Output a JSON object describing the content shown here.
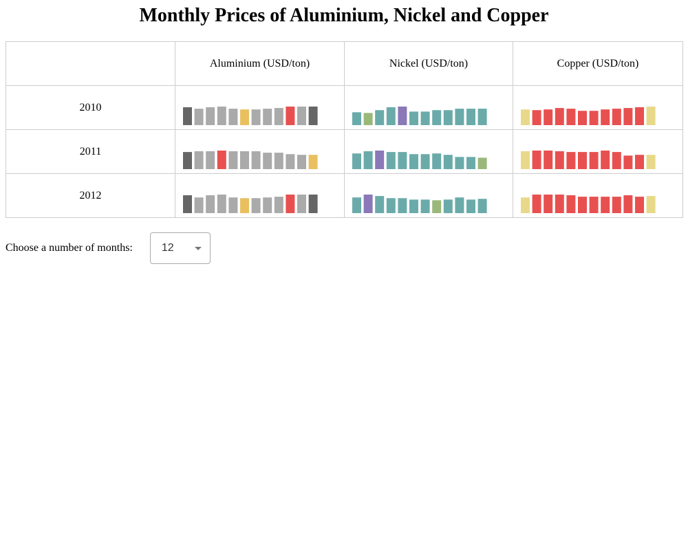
{
  "title": "Monthly Prices of Aluminium, Nickel and Copper",
  "controls": {
    "label": "Choose a number of months:",
    "selected": "12"
  },
  "chart_data": {
    "type": "table",
    "columns": [
      "Aluminium (USD/ton)",
      "Nickel (USD/ton)",
      "Copper (USD/ton)"
    ],
    "rows": [
      "2010",
      "2011",
      "2012"
    ],
    "series": [
      {
        "year": "2010",
        "values": [
          [
            25,
            23,
            25,
            26,
            23,
            22,
            22,
            23,
            24,
            26,
            26,
            26
          ],
          [
            18,
            17,
            21,
            25,
            26,
            19,
            19,
            21,
            21,
            23,
            23,
            23
          ],
          [
            22,
            21,
            22,
            24,
            23,
            20,
            20,
            22,
            23,
            24,
            25,
            26
          ]
        ],
        "colors": [
          [
            "#666666",
            "#aaaaaa",
            "#aaaaaa",
            "#aaaaaa",
            "#aaaaaa",
            "#e8c060",
            "#aaaaaa",
            "#aaaaaa",
            "#aaaaaa",
            "#e85050",
            "#aaaaaa",
            "#666666"
          ],
          [
            "#6aabaa",
            "#9ab87a",
            "#6aabaa",
            "#6aabaa",
            "#8a78b8",
            "#6aabaa",
            "#6aabaa",
            "#6aabaa",
            "#6aabaa",
            "#6aabaa",
            "#6aabaa",
            "#6aabaa"
          ],
          [
            "#e8d98a",
            "#e85050",
            "#e85050",
            "#e85050",
            "#e85050",
            "#e85050",
            "#e85050",
            "#e85050",
            "#e85050",
            "#e85050",
            "#e85050",
            "#e8d98a"
          ]
        ]
      },
      {
        "year": "2011",
        "values": [
          [
            24,
            25,
            25,
            26,
            25,
            25,
            25,
            23,
            23,
            21,
            20,
            20
          ],
          [
            22,
            25,
            26,
            24,
            24,
            21,
            21,
            22,
            20,
            17,
            17,
            16
          ],
          [
            25,
            26,
            26,
            25,
            24,
            24,
            24,
            26,
            24,
            19,
            20,
            20
          ]
        ],
        "colors": [
          [
            "#666666",
            "#aaaaaa",
            "#aaaaaa",
            "#e85050",
            "#aaaaaa",
            "#aaaaaa",
            "#aaaaaa",
            "#aaaaaa",
            "#aaaaaa",
            "#aaaaaa",
            "#aaaaaa",
            "#e8c060"
          ],
          [
            "#6aabaa",
            "#6aabaa",
            "#8a78b8",
            "#6aabaa",
            "#6aabaa",
            "#6aabaa",
            "#6aabaa",
            "#6aabaa",
            "#6aabaa",
            "#6aabaa",
            "#6aabaa",
            "#9ab87a"
          ],
          [
            "#e8d98a",
            "#e85050",
            "#e85050",
            "#e85050",
            "#e85050",
            "#e85050",
            "#e85050",
            "#e85050",
            "#e85050",
            "#e85050",
            "#e85050",
            "#e8d98a"
          ]
        ]
      },
      {
        "year": "2012",
        "values": [
          [
            25,
            22,
            25,
            26,
            22,
            21,
            21,
            22,
            23,
            26,
            26,
            26
          ],
          [
            22,
            26,
            24,
            21,
            21,
            19,
            19,
            18,
            19,
            22,
            19,
            20
          ],
          [
            22,
            26,
            26,
            26,
            25,
            23,
            23,
            23,
            23,
            25,
            23,
            24
          ]
        ],
        "colors": [
          [
            "#666666",
            "#aaaaaa",
            "#aaaaaa",
            "#aaaaaa",
            "#aaaaaa",
            "#e8c060",
            "#aaaaaa",
            "#aaaaaa",
            "#aaaaaa",
            "#e85050",
            "#aaaaaa",
            "#666666"
          ],
          [
            "#6aabaa",
            "#8a78b8",
            "#6aabaa",
            "#6aabaa",
            "#6aabaa",
            "#6aabaa",
            "#6aabaa",
            "#9ab87a",
            "#6aabaa",
            "#6aabaa",
            "#6aabaa",
            "#6aabaa"
          ],
          [
            "#e8d98a",
            "#e85050",
            "#e85050",
            "#e85050",
            "#e85050",
            "#e85050",
            "#e85050",
            "#e85050",
            "#e85050",
            "#e85050",
            "#e85050",
            "#e8d98a"
          ]
        ]
      }
    ],
    "value_scale_max": 26,
    "legend": "none",
    "grid": false
  }
}
